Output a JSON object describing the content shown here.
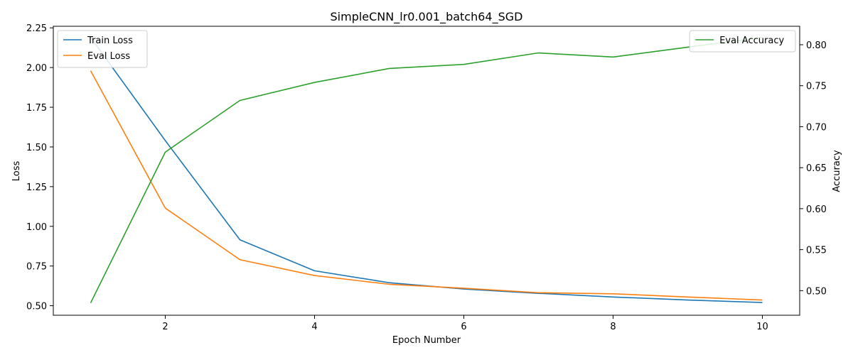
{
  "chart_data": {
    "type": "line",
    "title": "SimpleCNN_lr0.001_batch64_SGD",
    "xlabel": "Epoch Number",
    "ylabel_left": "Loss",
    "ylabel_right": "Accuracy",
    "x": [
      1,
      2,
      3,
      4,
      5,
      6,
      7,
      8,
      9,
      10
    ],
    "xlim": [
      0.5,
      10.5
    ],
    "xticks": [
      2,
      4,
      6,
      8,
      10
    ],
    "ylim_left": [
      0.44,
      2.26
    ],
    "yticks_left": [
      "0.50",
      "0.75",
      "1.00",
      "1.25",
      "1.50",
      "1.75",
      "2.00",
      "2.25"
    ],
    "ylim_right": [
      0.47,
      0.8225
    ],
    "yticks_right": [
      "0.50",
      "0.55",
      "0.60",
      "0.65",
      "0.70",
      "0.75",
      "0.80"
    ],
    "grid": false,
    "series": [
      {
        "name": "Train Loss",
        "axis": "left",
        "color": "#1f77b4",
        "values": [
          2.19,
          1.54,
          0.915,
          0.72,
          0.645,
          0.605,
          0.578,
          0.555,
          0.536,
          0.52
        ]
      },
      {
        "name": "Eval Loss",
        "axis": "left",
        "color": "#ff7f0e",
        "values": [
          1.98,
          1.115,
          0.79,
          0.69,
          0.635,
          0.61,
          0.582,
          0.575,
          0.555,
          0.536
        ]
      },
      {
        "name": "Eval Accuracy",
        "axis": "right",
        "color": "#2ca02c",
        "values": [
          0.485,
          0.669,
          0.732,
          0.754,
          0.771,
          0.776,
          0.79,
          0.785,
          0.797,
          0.809
        ]
      }
    ],
    "legends": [
      {
        "placement": "upper-left",
        "entries": [
          "Train Loss",
          "Eval Loss"
        ]
      },
      {
        "placement": "upper-right",
        "entries": [
          "Eval Accuracy"
        ]
      }
    ]
  }
}
